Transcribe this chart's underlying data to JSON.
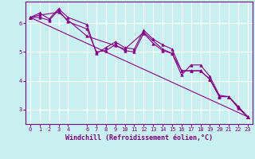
{
  "xlabel": "Windchill (Refroidissement éolien,°C)",
  "bg_color": "#c8f0f0",
  "line_color": "#8B008B",
  "grid_color": "#ffffff",
  "xlim": [
    -0.5,
    23.5
  ],
  "ylim": [
    2.5,
    6.75
  ],
  "yticks": [
    3,
    4,
    5,
    6
  ],
  "xticks": [
    0,
    1,
    2,
    3,
    4,
    6,
    7,
    8,
    9,
    10,
    11,
    12,
    13,
    14,
    15,
    16,
    17,
    18,
    19,
    20,
    21,
    22,
    23
  ],
  "lines": [
    {
      "x": [
        0,
        1,
        2,
        3,
        4,
        6,
        7,
        8,
        9,
        10,
        11,
        12,
        13,
        14,
        15,
        16,
        17,
        18,
        19,
        20,
        21,
        22,
        23
      ],
      "y": [
        6.2,
        6.35,
        6.15,
        6.5,
        6.2,
        5.95,
        4.95,
        5.15,
        5.35,
        5.15,
        5.1,
        5.75,
        5.45,
        5.25,
        5.1,
        4.35,
        4.35,
        4.35,
        4.05,
        3.45,
        3.45,
        3.05,
        2.75
      ]
    },
    {
      "x": [
        0,
        1,
        2,
        3,
        4,
        6,
        7,
        8,
        9,
        10,
        11,
        12,
        13,
        14,
        15,
        16,
        17,
        18,
        19,
        20,
        21,
        22,
        23
      ],
      "y": [
        6.2,
        6.2,
        6.1,
        6.45,
        6.05,
        5.8,
        5.0,
        5.05,
        5.25,
        5.05,
        5.0,
        5.65,
        5.3,
        5.05,
        4.95,
        4.2,
        4.55,
        4.55,
        4.15,
        3.5,
        3.45,
        3.1,
        2.75
      ]
    },
    {
      "x": [
        0,
        1,
        3,
        6,
        9,
        10,
        12,
        14,
        15,
        16,
        17,
        18,
        19,
        20,
        21,
        22,
        23
      ],
      "y": [
        6.2,
        6.28,
        6.38,
        5.55,
        5.22,
        5.1,
        5.68,
        5.1,
        4.95,
        4.35,
        4.35,
        4.35,
        4.05,
        3.45,
        3.45,
        3.1,
        2.75
      ]
    },
    {
      "x": [
        0,
        23
      ],
      "y": [
        6.2,
        2.75
      ]
    }
  ],
  "marker": "^",
  "markersize": 2.5,
  "linewidth": 0.8,
  "tick_fontsize": 5,
  "xlabel_fontsize": 6,
  "tick_color": "#800080",
  "axis_color": "#800080",
  "text_color": "#800080"
}
